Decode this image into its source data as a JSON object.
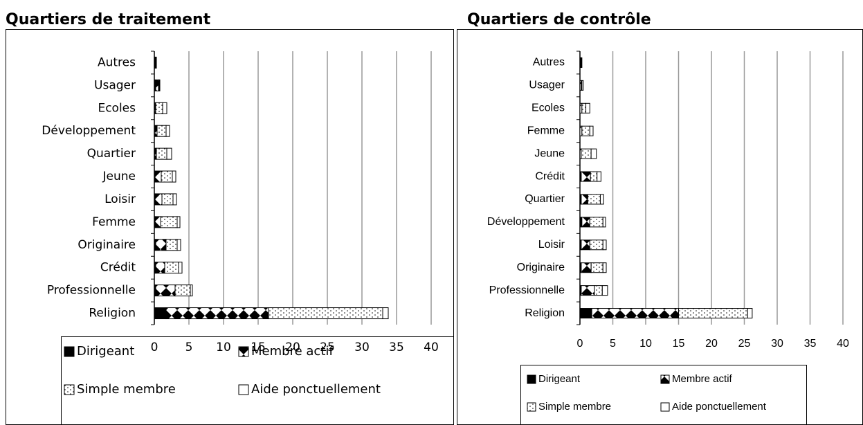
{
  "chart_data": [
    {
      "type": "stacked-barh",
      "title": "Quartiers de traitement",
      "categories": [
        "Autres",
        "Usager",
        "Ecoles",
        "Développement",
        "Quartier",
        "Jeune",
        "Loisir",
        "Femme",
        "Originaire",
        "Crédit",
        "Professionnelle",
        "Religion"
      ],
      "series": [
        {
          "name": "Dirigeant",
          "color": "#000000",
          "pattern": "solid",
          "values": [
            0,
            0.2,
            0,
            0,
            0,
            0.1,
            0.1,
            0.1,
            0.2,
            0.2,
            0.2,
            1.7
          ]
        },
        {
          "name": "Membre actif",
          "color": "#000000",
          "pattern": "triangles",
          "values": [
            0.1,
            0.4,
            0.2,
            0.4,
            0.3,
            0.9,
            1.0,
            0.8,
            1.5,
            1.3,
            2.8,
            14.8
          ]
        },
        {
          "name": "Simple membre",
          "color": "#000000",
          "pattern": "dots",
          "values": [
            0.1,
            0.1,
            1.0,
            1.3,
            1.5,
            1.6,
            1.6,
            2.4,
            1.6,
            2.0,
            2.2,
            16.5
          ]
        },
        {
          "name": "Aide ponctuellement",
          "color": "#000000",
          "pattern": "none",
          "values": [
            0.1,
            0.1,
            0.6,
            0.5,
            0.7,
            0.5,
            0.5,
            0.4,
            0.5,
            0.5,
            0.3,
            0.8
          ]
        }
      ],
      "xlim": [
        0,
        40
      ],
      "xticks": [
        0,
        5,
        10,
        15,
        20,
        25,
        30,
        35,
        40
      ],
      "grid": true,
      "legend": "bottom"
    },
    {
      "type": "stacked-barh",
      "title": "Quartiers de contrôle",
      "categories": [
        "Autres",
        "Usager",
        "Ecoles",
        "Femme",
        "Jeune",
        "Crédit",
        "Quartier",
        "Développement",
        "Loisir",
        "Originaire",
        "Professionnelle",
        "Religion"
      ],
      "series": [
        {
          "name": "Dirigeant",
          "color": "#000000",
          "pattern": "solid",
          "values": [
            0,
            0,
            0,
            0,
            0,
            0.2,
            0.2,
            0.3,
            0.2,
            0.2,
            0.2,
            1.8
          ]
        },
        {
          "name": "Membre actif",
          "color": "#000000",
          "pattern": "triangles",
          "values": [
            0.1,
            0.2,
            0.3,
            0.3,
            0.2,
            1.4,
            1.0,
            1.2,
            1.3,
            1.5,
            2.0,
            13.2
          ]
        },
        {
          "name": "Simple membre",
          "color": "#000000",
          "pattern": "dots",
          "values": [
            0.1,
            0.1,
            0.6,
            1.2,
            1.5,
            1.0,
            1.9,
            2.0,
            2.0,
            1.8,
            1.2,
            10.5
          ]
        },
        {
          "name": "Aide ponctuellement",
          "color": "#000000",
          "pattern": "none",
          "values": [
            0.1,
            0.2,
            0.6,
            0.5,
            0.8,
            0.6,
            0.5,
            0.4,
            0.5,
            0.5,
            0.8,
            0.7
          ]
        }
      ],
      "xlim": [
        0,
        40
      ],
      "xticks": [
        0,
        5,
        10,
        15,
        20,
        25,
        30,
        35,
        40
      ],
      "grid": true,
      "legend": "bottom"
    }
  ]
}
